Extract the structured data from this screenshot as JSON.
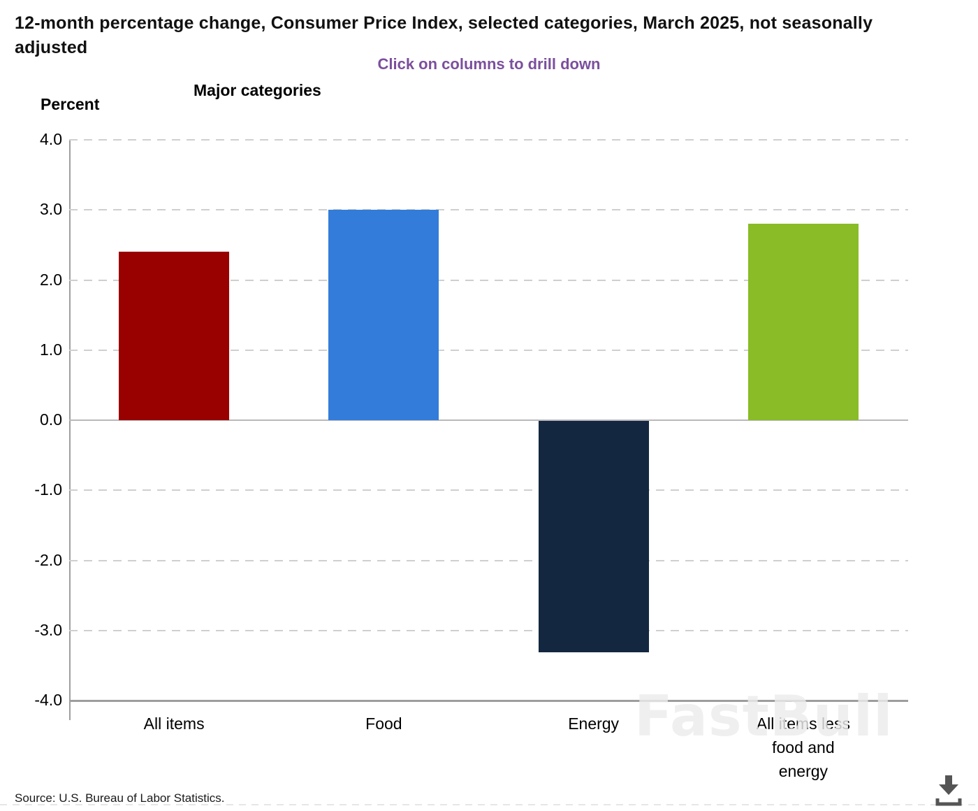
{
  "header": {
    "title": "12-month percentage change, Consumer Price Index, selected categories, March 2025, not seasonally adjusted",
    "subtitle": "Click on columns to drill down",
    "axis_title": "Major categories",
    "y_unit_label": "Percent"
  },
  "chart_data": {
    "type": "bar",
    "categories": [
      "All items",
      "Food",
      "Energy",
      "All items less food and energy"
    ],
    "values": [
      2.4,
      3.0,
      -3.3,
      2.8
    ],
    "bar_colors": [
      "#990000",
      "#337cd9",
      "#132840",
      "#89bc26"
    ],
    "title": "12-month percentage change, Consumer Price Index, selected categories, March 2025, not seasonally adjusted",
    "xlabel": "Major categories",
    "ylabel": "Percent",
    "ylim": [
      -4.0,
      4.0
    ],
    "ytick_step": 1.0,
    "ytick_labels": [
      "4.0",
      "3.0",
      "2.0",
      "1.0",
      "0.0",
      "-1.0",
      "-2.0",
      "-3.0",
      "-4.0"
    ],
    "grid": "horizontal dashed",
    "legend": "none"
  },
  "footer": {
    "source": "Source: U.S. Bureau of Labor Statistics."
  },
  "watermark": {
    "text": "FastBull"
  },
  "icons": {
    "download": "download-arrow-into-tray"
  },
  "accent_colors": {
    "subtitle_purple": "#7b4f9d",
    "gridline_gray": "#cfcfcf"
  }
}
